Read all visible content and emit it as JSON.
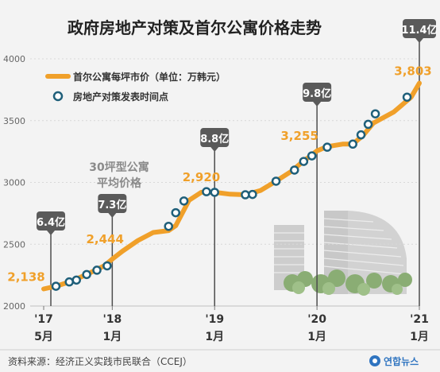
{
  "chart_data": {
    "type": "line",
    "title": "政府房地产对策及首尔公寓价格走势",
    "legend": {
      "placement": "top-left",
      "line_label": "首尔公寓每坪市价（单位：万韩元）",
      "marker_label": "房地产对策发表时间点"
    },
    "y_ticks": [
      "4000",
      "3500",
      "3000",
      "2500",
      "2000"
    ],
    "ylim": [
      2000,
      4000
    ],
    "x_ticks": [
      {
        "year": "'17",
        "month": "5月",
        "x": 2017.33
      },
      {
        "year": "'18",
        "month": "1月",
        "x": 2018.0
      },
      {
        "year": "'19",
        "month": "1月",
        "x": 2019.0
      },
      {
        "year": "'20",
        "month": "1月",
        "x": 2020.0
      },
      {
        "year": "'21",
        "month": "1月",
        "x": 2021.0
      }
    ],
    "xlim": [
      2017.33,
      2021.0
    ],
    "series": [
      {
        "name": "首尔公寓每坪市价（单位：万韩元）",
        "color": "#f0a02a",
        "points": [
          [
            2017.33,
            2138
          ],
          [
            2017.45,
            2160
          ],
          [
            2017.6,
            2200
          ],
          [
            2017.75,
            2255
          ],
          [
            2017.92,
            2325
          ],
          [
            2018.0,
            2380
          ],
          [
            2018.1,
            2444
          ],
          [
            2018.25,
            2530
          ],
          [
            2018.4,
            2595
          ],
          [
            2018.55,
            2610
          ],
          [
            2018.62,
            2650
          ],
          [
            2018.75,
            2855
          ],
          [
            2018.87,
            2920
          ],
          [
            2019.0,
            2920
          ],
          [
            2019.15,
            2905
          ],
          [
            2019.3,
            2900
          ],
          [
            2019.45,
            2935
          ],
          [
            2019.6,
            3010
          ],
          [
            2019.75,
            3090
          ],
          [
            2019.85,
            3160
          ],
          [
            2020.0,
            3255
          ],
          [
            2020.1,
            3290
          ],
          [
            2020.25,
            3310
          ],
          [
            2020.35,
            3310
          ],
          [
            2020.45,
            3380
          ],
          [
            2020.55,
            3480
          ],
          [
            2020.75,
            3570
          ],
          [
            2020.92,
            3690
          ],
          [
            2021.0,
            3803
          ]
        ]
      }
    ],
    "announcements": [
      {
        "x": 2017.45,
        "y": 2160
      },
      {
        "x": 2017.58,
        "y": 2195
      },
      {
        "x": 2017.65,
        "y": 2210
      },
      {
        "x": 2017.75,
        "y": 2255
      },
      {
        "x": 2017.85,
        "y": 2290
      },
      {
        "x": 2017.95,
        "y": 2325
      },
      {
        "x": 2018.55,
        "y": 2645
      },
      {
        "x": 2018.62,
        "y": 2755
      },
      {
        "x": 2018.7,
        "y": 2850
      },
      {
        "x": 2018.92,
        "y": 2925
      },
      {
        "x": 2019.0,
        "y": 2920
      },
      {
        "x": 2019.3,
        "y": 2900
      },
      {
        "x": 2019.37,
        "y": 2903
      },
      {
        "x": 2019.6,
        "y": 3010
      },
      {
        "x": 2019.78,
        "y": 3100
      },
      {
        "x": 2019.87,
        "y": 3170
      },
      {
        "x": 2019.95,
        "y": 3215
      },
      {
        "x": 2020.1,
        "y": 3285
      },
      {
        "x": 2020.35,
        "y": 3310
      },
      {
        "x": 2020.43,
        "y": 3385
      },
      {
        "x": 2020.5,
        "y": 3470
      },
      {
        "x": 2020.57,
        "y": 3555
      },
      {
        "x": 2020.88,
        "y": 3690
      }
    ],
    "annotations": [
      {
        "text": "6.4亿",
        "x": 2017.4
      },
      {
        "text": "7.3亿",
        "x": 2018.0
      },
      {
        "text": "8.8亿",
        "x": 2019.0
      },
      {
        "text": "9.8亿",
        "x": 2020.0
      },
      {
        "text": "11.4亿",
        "x": 2021.0
      }
    ],
    "value_labels": [
      {
        "text": "2,138",
        "x": 2017.33,
        "y": 2138
      },
      {
        "text": "2,444",
        "x": 2018.1,
        "y": 2444
      },
      {
        "text": "2,920",
        "x": 2018.87,
        "y": 2920
      },
      {
        "text": "3,255",
        "x": 2020.0,
        "y": 3255
      },
      {
        "text": "3,803",
        "x": 2021.0,
        "y": 3803
      }
    ],
    "inset_note": [
      "30坪型公寓",
      "平均价格"
    ]
  },
  "footer": {
    "source": "资料来源：经济正义实践市民联合（CCEJ）",
    "logo": "연합뉴스"
  },
  "colors": {
    "line": "#f0a02a",
    "label_orange": "#f0a02a",
    "badge": "#5a5a5a",
    "marker_fill": "#ffffff",
    "marker_stroke": "#1f5f7a",
    "grid": "#d8d8d8",
    "axis_text": "#666666"
  }
}
